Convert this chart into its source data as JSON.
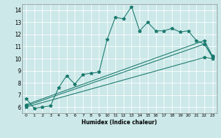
{
  "title": "",
  "xlabel": "Humidex (Indice chaleur)",
  "xlim": [
    -0.5,
    23.5
  ],
  "ylim": [
    5.5,
    14.5
  ],
  "xticks": [
    0,
    1,
    2,
    3,
    4,
    5,
    6,
    7,
    8,
    9,
    10,
    11,
    12,
    13,
    14,
    15,
    16,
    17,
    18,
    19,
    20,
    21,
    22,
    23
  ],
  "yticks": [
    6,
    7,
    8,
    9,
    10,
    11,
    12,
    13,
    14
  ],
  "bg_color": "#cce8e8",
  "grid_color": "#ffffff",
  "line_color": "#1a7a6e",
  "line1_x": [
    0,
    1,
    2,
    3,
    4,
    5,
    6,
    7,
    8,
    9,
    10,
    11,
    12,
    13,
    14,
    15,
    16,
    17,
    18,
    19,
    20,
    21,
    22,
    23
  ],
  "line1_y": [
    6.7,
    5.9,
    6.0,
    6.1,
    7.6,
    8.6,
    7.9,
    8.7,
    8.8,
    8.9,
    11.6,
    13.4,
    13.3,
    14.3,
    12.3,
    13.0,
    12.3,
    12.3,
    12.5,
    12.2,
    12.3,
    11.5,
    11.2,
    10.2
  ],
  "line2_x": [
    0,
    22,
    23
  ],
  "line2_y": [
    6.2,
    11.5,
    10.2
  ],
  "line3_x": [
    0,
    22,
    23
  ],
  "line3_y": [
    6.1,
    11.2,
    10.1
  ],
  "line4_x": [
    0,
    22,
    23
  ],
  "line4_y": [
    6.0,
    10.1,
    10.0
  ]
}
